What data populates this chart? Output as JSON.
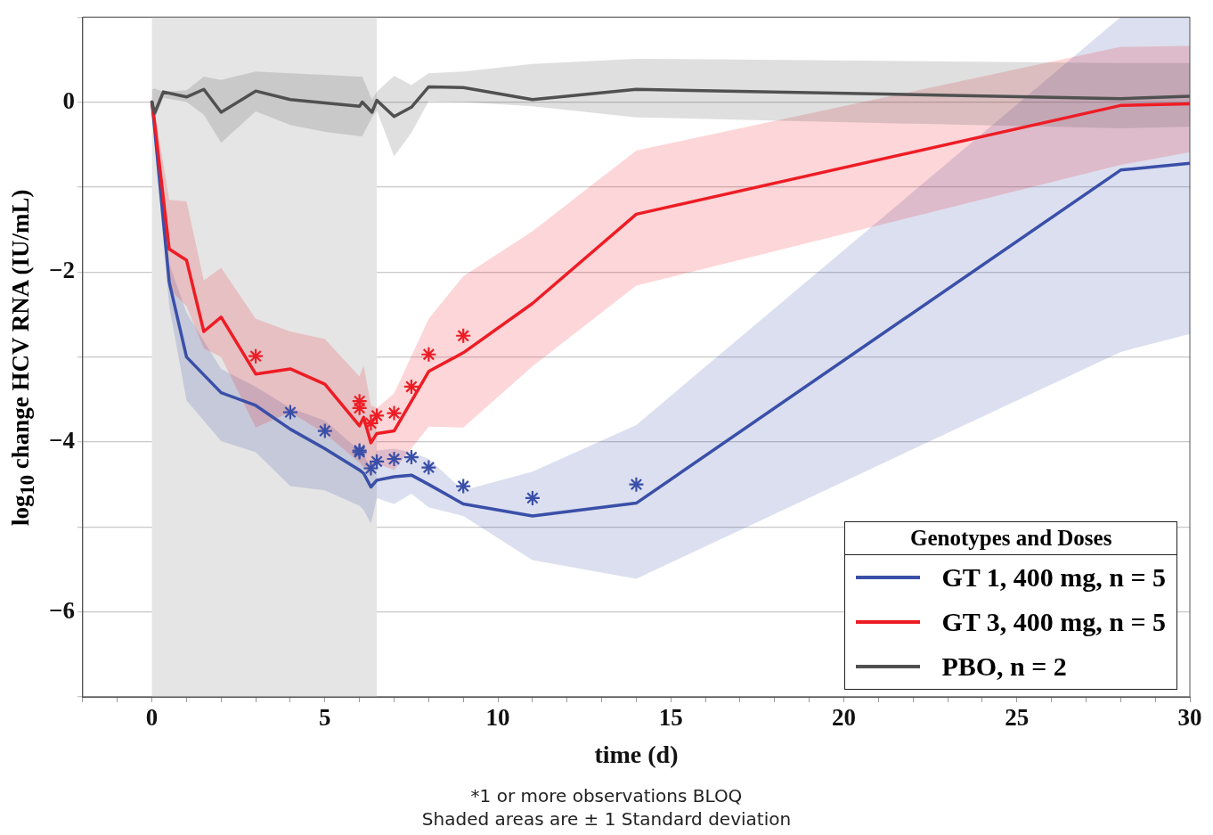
{
  "chart_data": {
    "type": "line",
    "xlabel": "time (d)",
    "ylabel": "log$_{10}$ change HCV RNA (IU/mL)",
    "legend_title": "Genotypes and Doses",
    "legend": "bottom right",
    "grid": "y",
    "xlim": [
      -2,
      30
    ],
    "ylim": [
      -7,
      1
    ],
    "xticks": [
      {
        "value": -2,
        "label": null
      },
      {
        "value": -1,
        "label": null
      },
      0,
      {
        "value": 1,
        "label": null
      },
      {
        "value": 2,
        "label": null
      },
      {
        "value": 3,
        "label": null
      },
      {
        "value": 4,
        "label": null
      },
      5,
      {
        "value": 6,
        "label": null
      },
      {
        "value": 7,
        "label": null
      },
      {
        "value": 8,
        "label": null
      },
      {
        "value": 9,
        "label": null
      },
      10,
      {
        "value": 11,
        "label": null
      },
      {
        "value": 12,
        "label": null
      },
      {
        "value": 13,
        "label": null
      },
      {
        "value": 14,
        "label": null
      },
      15,
      {
        "value": 16,
        "label": null
      },
      {
        "value": 17,
        "label": null
      },
      {
        "value": 18,
        "label": null
      },
      {
        "value": 19,
        "label": null
      },
      20,
      {
        "value": 21,
        "label": null
      },
      {
        "value": 22,
        "label": null
      },
      {
        "value": 23,
        "label": null
      },
      {
        "value": 24,
        "label": null
      },
      25,
      {
        "value": 26,
        "label": null
      },
      {
        "value": 27,
        "label": null
      },
      {
        "value": 28,
        "label": null
      },
      {
        "value": 29,
        "label": null
      },
      30
    ],
    "yticks": [
      {
        "value": -7,
        "label": null
      },
      -6,
      {
        "value": -5,
        "label": null
      },
      -4,
      {
        "value": -3,
        "label": null
      },
      -2,
      {
        "value": -1,
        "label": null
      },
      0,
      {
        "value": 1,
        "label": null
      }
    ],
    "bands": [
      {
        "axis": "x",
        "from": 0,
        "to": 6.5,
        "color": "#e5e5e5"
      }
    ],
    "series": [
      {
        "name": "PBO, n = 2",
        "marker": "none",
        "color": "#505050",
        "x": [
          0,
          0.08,
          0.33,
          1,
          1.5,
          2,
          3,
          4,
          5,
          6,
          6.08,
          6.36,
          6.5,
          7,
          7.5,
          8,
          9,
          11,
          14,
          28,
          30
        ],
        "values": [
          0,
          -0.13,
          0.12,
          0.06,
          0.15,
          -0.12,
          0.13,
          0.03,
          -0.01,
          -0.05,
          0,
          -0.12,
          0.02,
          -0.17,
          -0.06,
          0.18,
          0.17,
          0.03,
          0.15,
          0.04,
          0.07
        ],
        "upper": [
          0.15,
          0.16,
          0.12,
          0.14,
          0.3,
          0.26,
          0.36,
          0.34,
          0.32,
          0.3,
          0.3,
          0.03,
          0.12,
          0.31,
          0.2,
          0.34,
          0.36,
          0.45,
          0.51,
          0.46,
          0.46
        ],
        "lower": [
          -0.15,
          -0.2,
          0.05,
          0,
          -0.15,
          -0.48,
          -0.11,
          -0.27,
          -0.35,
          -0.4,
          -0.4,
          -0.18,
          -0.1,
          -0.64,
          -0.36,
          0.01,
          0,
          -0.05,
          -0.18,
          -0.31,
          -0.29
        ]
      },
      {
        "name": "GT 3, 400 mg, n = 5",
        "marker": "none",
        "color": "#ee1c25",
        "x": [
          0,
          0.08,
          0.5,
          1,
          1.5,
          2,
          3,
          4,
          5,
          6,
          6.12,
          6.33,
          6.5,
          7,
          8,
          9,
          11,
          14,
          28,
          30
        ],
        "values": [
          0,
          -0.25,
          -1.73,
          -1.86,
          -2.7,
          -2.53,
          -3.2,
          -3.14,
          -3.32,
          -3.81,
          -3.71,
          -4.01,
          -3.9,
          -3.87,
          -3.17,
          -2.95,
          -2.37,
          -1.32,
          -0.04,
          -0.02
        ],
        "upper": [
          0,
          -0.1,
          -1.15,
          -1.17,
          -2.1,
          -1.95,
          -2.55,
          -2.7,
          -2.79,
          -3.23,
          -3.1,
          -3.57,
          -3.6,
          -3.43,
          -2.55,
          -2.05,
          -1.52,
          -0.57,
          0.65,
          0.66
        ],
        "lower": [
          0,
          -0.4,
          -2.2,
          -2.4,
          -2.9,
          -3,
          -3.83,
          -3.65,
          -3.9,
          -4.24,
          -4.3,
          -4.4,
          -4.25,
          -4.33,
          -3.82,
          -3.83,
          -3.11,
          -2.16,
          -0.74,
          -0.59
        ]
      },
      {
        "name": "GT 1, 400 mg, n = 5",
        "marker": "none",
        "color": "#3a4fa8",
        "x": [
          0,
          0.08,
          0.5,
          1,
          2,
          3,
          4,
          5,
          6,
          6.12,
          6.33,
          6.5,
          7,
          7.5,
          8,
          9,
          11,
          14,
          28,
          30
        ],
        "values": [
          0,
          -0.32,
          -2.12,
          -3,
          -3.42,
          -3.57,
          -3.85,
          -4.08,
          -4.33,
          -4.37,
          -4.53,
          -4.45,
          -4.41,
          -4.39,
          -4.5,
          -4.73,
          -4.87,
          -4.72,
          -0.8,
          -0.72
        ],
        "upper": [
          0,
          -0.2,
          -1.9,
          -2.48,
          -3.14,
          -3.35,
          -3.6,
          -3.75,
          -4.1,
          -4.15,
          -4.3,
          -4.1,
          -4.08,
          -4.12,
          -4.2,
          -4.57,
          -4.35,
          -3.8,
          1,
          1
        ],
        "lower": [
          0,
          -0.5,
          -2.4,
          -3.51,
          -3.99,
          -4.12,
          -4.52,
          -4.57,
          -4.75,
          -4.8,
          -4.96,
          -4.66,
          -4.73,
          -4.61,
          -4.77,
          -4.87,
          -5.39,
          -5.61,
          -2.94,
          -2.73
        ]
      },
      {
        "type": "scatter",
        "marker": "cross",
        "color": "#ee1c25",
        "x": [
          3,
          6,
          6,
          6.33,
          6.5,
          7,
          7.5,
          8,
          9
        ],
        "values": [
          -2.99,
          -3.52,
          -3.6,
          -3.78,
          -3.69,
          -3.66,
          -3.35,
          -2.97,
          -2.75
        ]
      },
      {
        "type": "scatter",
        "marker": "cross",
        "color": "#3a4fa8",
        "x": [
          4,
          5,
          6,
          6,
          6.33,
          6.5,
          7,
          7.5,
          8,
          9,
          11,
          14
        ],
        "values": [
          -3.65,
          -3.87,
          -4.12,
          -4.1,
          -4.31,
          -4.23,
          -4.2,
          -4.18,
          -4.3,
          -4.52,
          -4.66,
          -4.5
        ]
      }
    ],
    "annotations": [
      "*1 or more observations BLOQ",
      "Shaded areas are ± 1 Standard deviation"
    ]
  }
}
